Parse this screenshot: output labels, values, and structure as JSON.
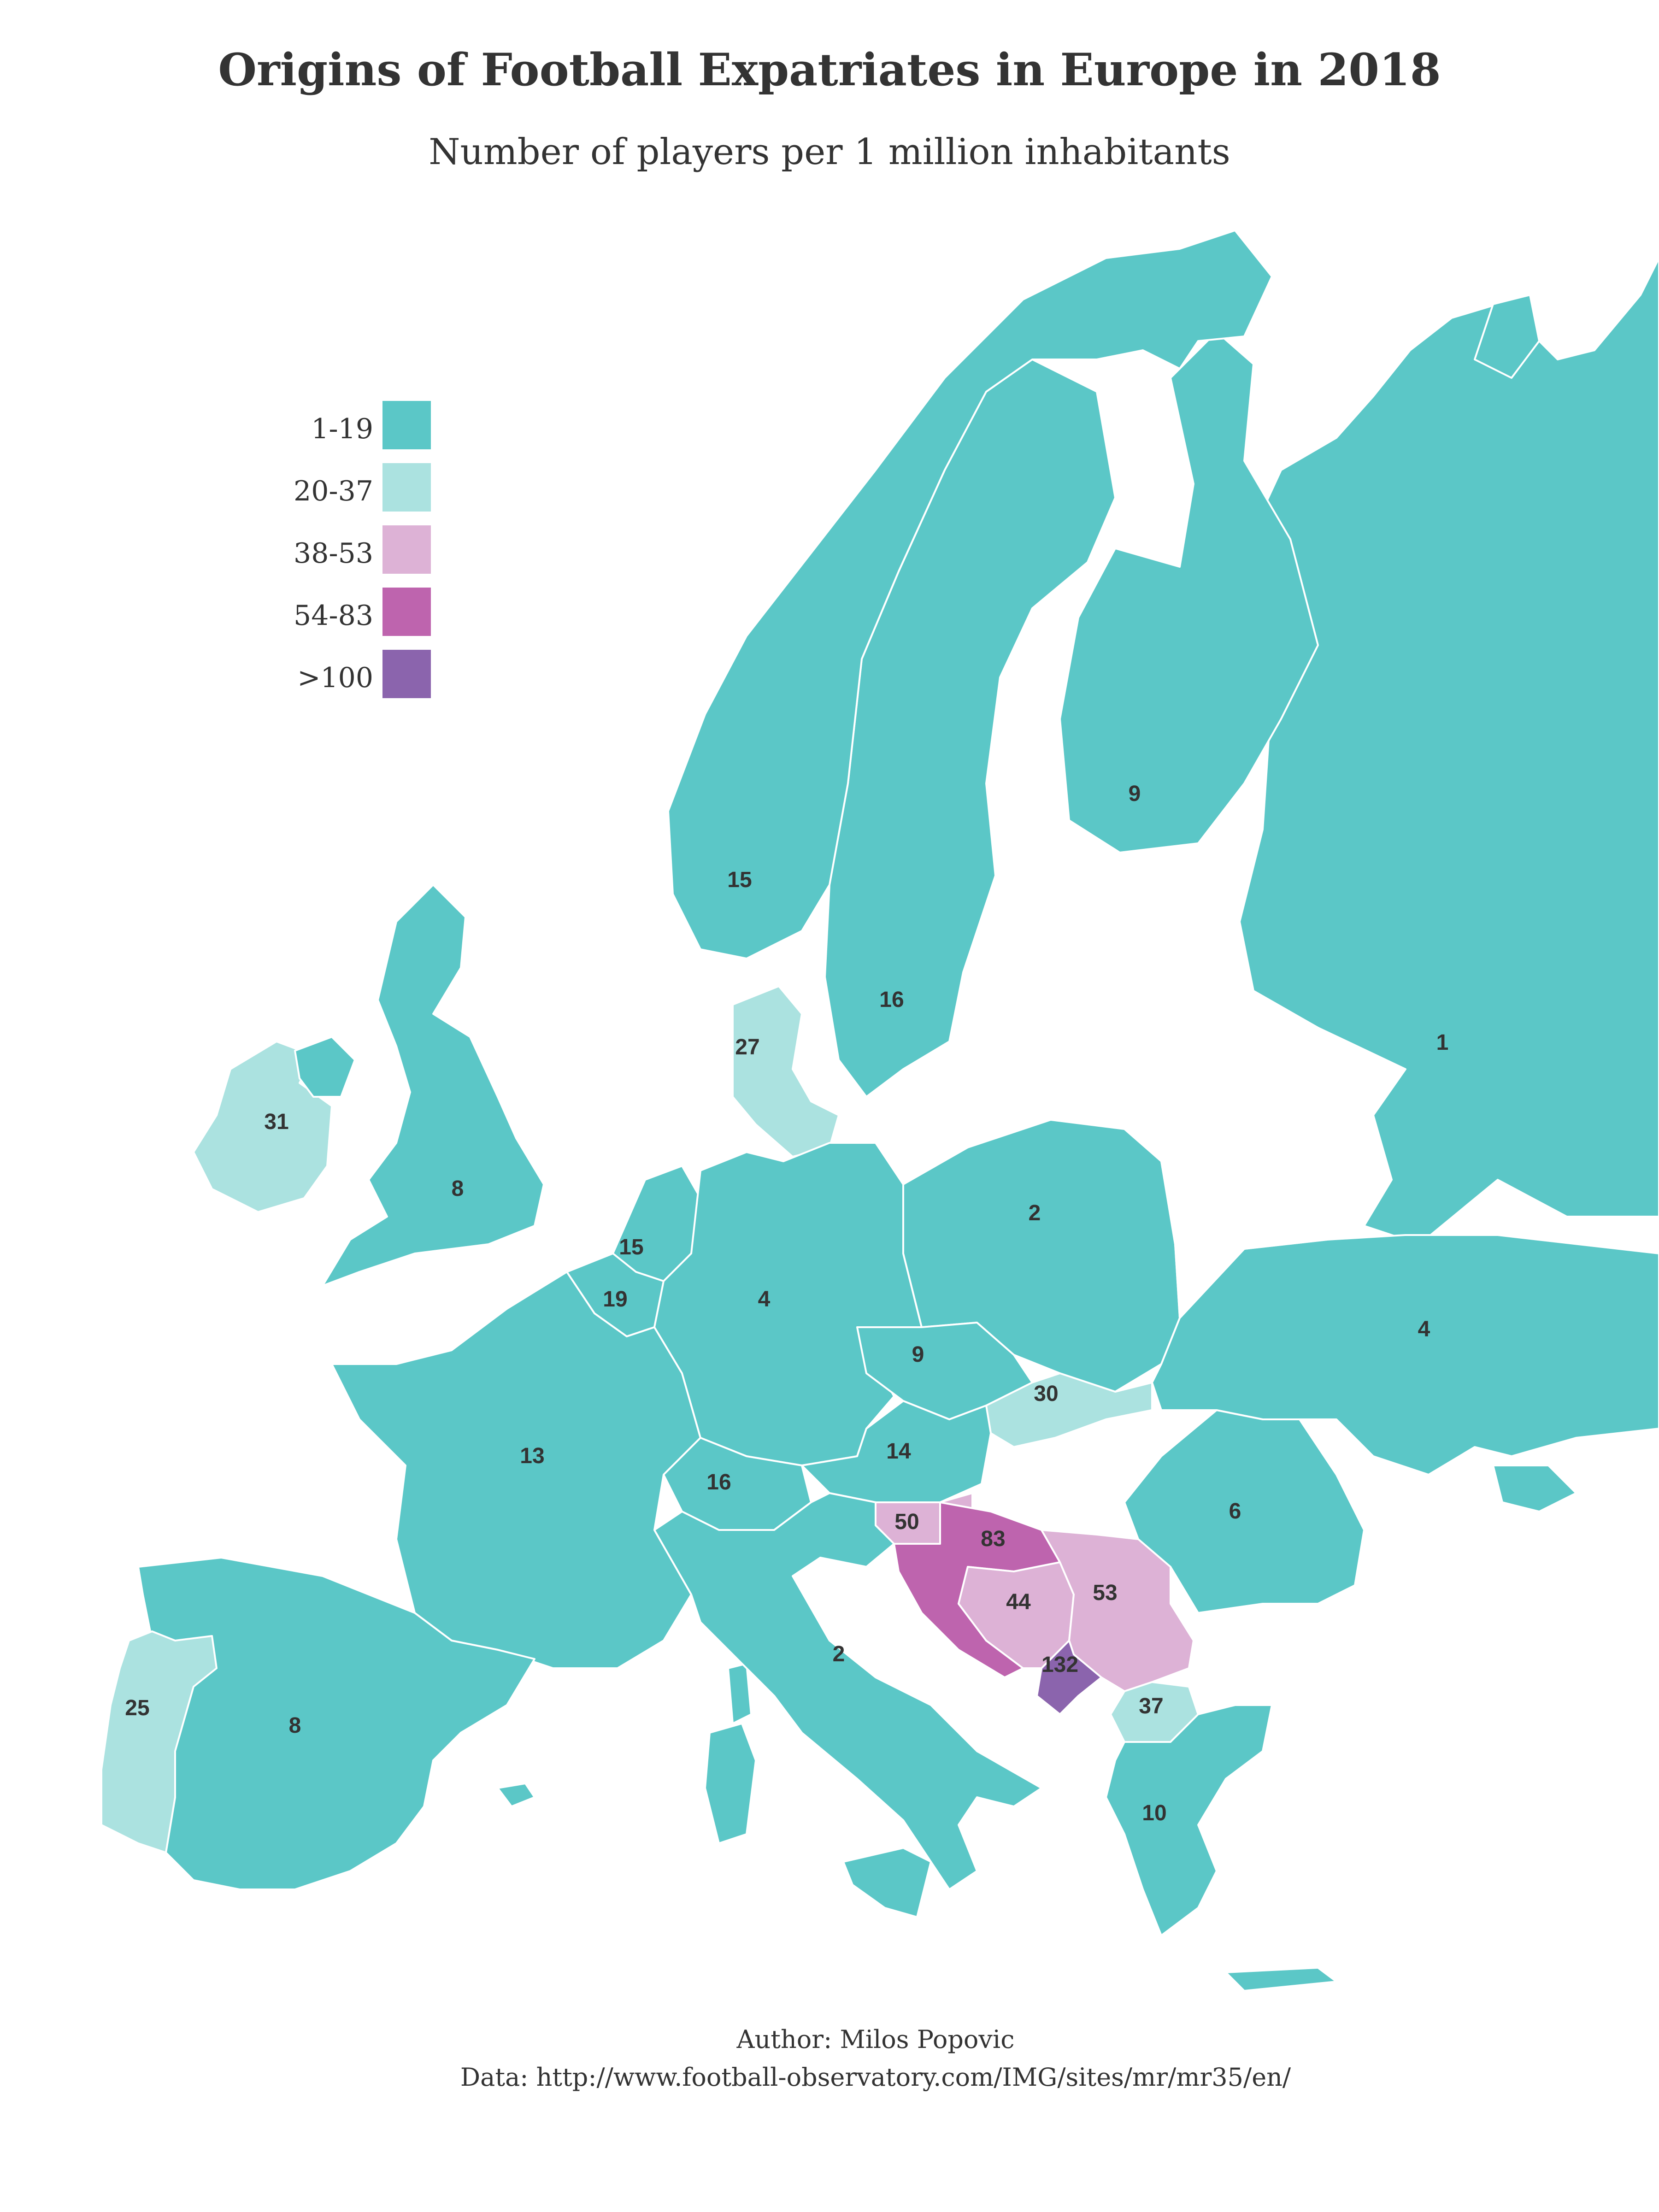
{
  "title": "Origins of Football Expatriates in Europe in 2018",
  "subtitle": "Number of players per 1 million inhabitants",
  "legend": [
    {
      "label": "1-19",
      "color": "#5bc7c7"
    },
    {
      "label": "20-37",
      "color": "#abe2e0"
    },
    {
      "label": "38-53",
      "color": "#ddb2d6"
    },
    {
      "label": "54-83",
      "color": "#be64ae"
    },
    {
      "label": ">100",
      "color": "#8b64ad"
    }
  ],
  "countries": [
    {
      "name": "Norway",
      "value": "15",
      "class": "1-19"
    },
    {
      "name": "Sweden",
      "value": "16",
      "class": "1-19"
    },
    {
      "name": "Finland",
      "value": "9",
      "class": "1-19"
    },
    {
      "name": "Russia",
      "value": "1",
      "class": "1-19"
    },
    {
      "name": "Denmark",
      "value": "27",
      "class": "20-37"
    },
    {
      "name": "Ireland",
      "value": "31",
      "class": "20-37"
    },
    {
      "name": "United Kingdom",
      "value": "8",
      "class": "1-19"
    },
    {
      "name": "Netherlands",
      "value": "15",
      "class": "1-19"
    },
    {
      "name": "Belgium",
      "value": "19",
      "class": "1-19"
    },
    {
      "name": "Germany",
      "value": "4",
      "class": "1-19"
    },
    {
      "name": "Poland",
      "value": "2",
      "class": "1-19"
    },
    {
      "name": "Ukraine",
      "value": "4",
      "class": "1-19"
    },
    {
      "name": "Czech Republic",
      "value": "9",
      "class": "1-19"
    },
    {
      "name": "Slovakia",
      "value": "30",
      "class": "20-37"
    },
    {
      "name": "Austria",
      "value": "14",
      "class": "1-19"
    },
    {
      "name": "Switzerland",
      "value": "16",
      "class": "1-19"
    },
    {
      "name": "France",
      "value": "13",
      "class": "1-19"
    },
    {
      "name": "Romania",
      "value": "6",
      "class": "1-19"
    },
    {
      "name": "Slovenia",
      "value": "50",
      "class": "38-53"
    },
    {
      "name": "Croatia",
      "value": "83",
      "class": "54-83"
    },
    {
      "name": "Bosnia and Herzegovina",
      "value": "44",
      "class": "38-53"
    },
    {
      "name": "Serbia",
      "value": "53",
      "class": "38-53"
    },
    {
      "name": "Montenegro",
      "value": "132",
      "class": ">100"
    },
    {
      "name": "North Macedonia",
      "value": "37",
      "class": "20-37"
    },
    {
      "name": "Greece",
      "value": "10",
      "class": "1-19"
    },
    {
      "name": "Italy",
      "value": "2",
      "class": "1-19"
    },
    {
      "name": "Portugal",
      "value": "25",
      "class": "20-37"
    },
    {
      "name": "Spain",
      "value": "8",
      "class": "1-19"
    }
  ],
  "caption": {
    "author": "Author: Milos Popovic",
    "source": "Data: http://www.football-observatory.com/IMG/sites/mr/mr35/en/"
  }
}
